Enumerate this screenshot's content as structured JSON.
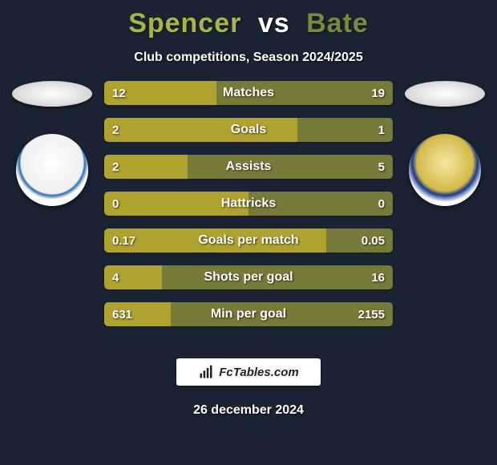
{
  "background_color": "#1a2332",
  "title": {
    "player1": "Spencer",
    "vs": "vs",
    "player2": "Bate",
    "player1_color": "#a8b644",
    "player2_color": "#7a8a3a",
    "fontsize": 34
  },
  "subtitle": "Club competitions, Season 2024/2025",
  "rows": [
    {
      "label": "Matches",
      "left": "12",
      "right": "19",
      "pct_left": 39
    },
    {
      "label": "Goals",
      "left": "2",
      "right": "1",
      "pct_left": 67
    },
    {
      "label": "Assists",
      "left": "2",
      "right": "5",
      "pct_left": 29
    },
    {
      "label": "Hattricks",
      "left": "0",
      "right": "0",
      "pct_left": 50
    },
    {
      "label": "Goals per match",
      "left": "0.17",
      "right": "0.05",
      "pct_left": 77
    },
    {
      "label": "Shots per goal",
      "left": "4",
      "right": "16",
      "pct_left": 20
    },
    {
      "label": "Min per goal",
      "left": "631",
      "right": "2155",
      "pct_left": 23
    }
  ],
  "bar_style": {
    "height": 30,
    "gap": 16,
    "radius": 5,
    "left_color": "#b0a22f",
    "right_color": "#777b39",
    "label_fontsize": 16,
    "value_fontsize": 15,
    "text_color": "#ffffff"
  },
  "brand": "FcTables.com",
  "date": "26 december 2024",
  "crest_left_hint": "blue/white striped club crest",
  "crest_right_hint": "gold/navy county crest"
}
